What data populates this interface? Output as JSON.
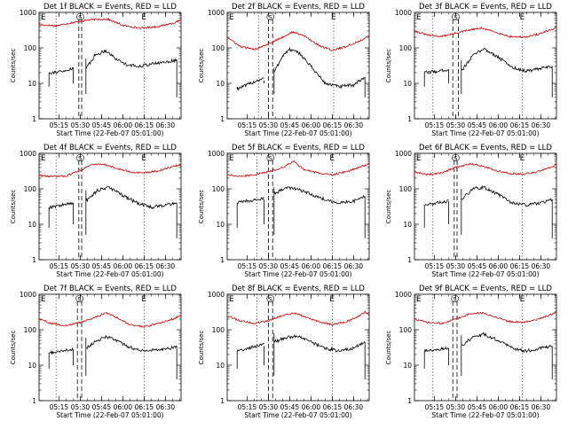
{
  "figure": {
    "ylabel": "Counts/sec",
    "xlabel": "Start Time (22-Feb-07 05:01:00)",
    "xticks": [
      "05:15",
      "05:30",
      "05:45",
      "06:00",
      "06:15",
      "06:30"
    ],
    "yticks": [
      "1",
      "10",
      "100",
      "1000"
    ],
    "markers": {
      "left": "E",
      "right": "E",
      "saa": "S"
    },
    "colors": {
      "events": "#000000",
      "lld": "#cc0000"
    }
  },
  "chart_data": [
    {
      "type": "line",
      "title": "Det 1f BLACK = Events, RED = LLD",
      "xlim": [
        "05:01",
        "06:41"
      ],
      "ylim": [
        1,
        1000
      ],
      "yscale": "log",
      "xlabel": "Start Time (22-Feb-07 05:01:00)",
      "ylabel": "Counts/sec",
      "dotted_x": [
        "05:13",
        "06:15"
      ],
      "dashed_x": [
        "05:29",
        "05:31"
      ],
      "events": {
        "start": "05:08",
        "end": "06:38",
        "gap": [
          "05:25",
          "05:34"
        ],
        "x": [
          "05:08",
          "05:20",
          "05:25",
          "05:34",
          "05:40",
          "05:48",
          "05:55",
          "06:02",
          "06:10",
          "06:20",
          "06:30",
          "06:38"
        ],
        "y": [
          20,
          22,
          28,
          25,
          60,
          85,
          50,
          35,
          30,
          35,
          40,
          45
        ]
      },
      "lld": {
        "x": [
          "05:01",
          "05:13",
          "05:25",
          "05:37",
          "05:49",
          "06:01",
          "06:13",
          "06:25",
          "06:37",
          "06:41"
        ],
        "y": [
          450,
          420,
          520,
          620,
          650,
          420,
          360,
          400,
          520,
          600
        ]
      }
    },
    {
      "type": "line",
      "title": "Det 2f BLACK = Events, RED = LLD",
      "xlim": [
        "05:01",
        "06:41"
      ],
      "ylim": [
        1,
        1000
      ],
      "yscale": "log",
      "xlabel": "Start Time (22-Feb-07 05:01:00)",
      "ylabel": "Counts/sec",
      "dotted_x": [
        "05:23",
        "06:16"
      ],
      "dashed_x": [
        "05:30",
        "05:33"
      ],
      "events": {
        "start": "05:08",
        "end": "06:38",
        "gap": [
          "05:27",
          "05:34"
        ],
        "x": [
          "05:08",
          "05:15",
          "05:22",
          "05:27",
          "05:34",
          "05:40",
          "05:45",
          "05:52",
          "06:00",
          "06:10",
          "06:20",
          "06:30",
          "06:38"
        ],
        "y": [
          7,
          9,
          12,
          14,
          20,
          60,
          90,
          70,
          30,
          10,
          8,
          9,
          15
        ]
      },
      "lld": {
        "x": [
          "05:01",
          "05:10",
          "05:20",
          "05:30",
          "05:40",
          "05:47",
          "05:55",
          "06:05",
          "06:15",
          "06:25",
          "06:35",
          "06:41"
        ],
        "y": [
          200,
          110,
          90,
          130,
          200,
          280,
          220,
          120,
          85,
          110,
          160,
          220
        ]
      }
    },
    {
      "type": "line",
      "title": "Det 3f BLACK = Events, RED = LLD",
      "xlim": [
        "05:01",
        "06:41"
      ],
      "ylim": [
        1,
        1000
      ],
      "yscale": "log",
      "xlabel": "Start Time (22-Feb-07 05:01:00)",
      "ylabel": "Counts/sec",
      "dotted_x": [
        "05:14",
        "06:17"
      ],
      "dashed_x": [
        "05:28",
        "05:32"
      ],
      "events": {
        "start": "05:08",
        "end": "06:38",
        "gap": [
          "05:25",
          "05:34"
        ],
        "x": [
          "05:08",
          "05:18",
          "05:25",
          "05:34",
          "05:42",
          "05:50",
          "06:00",
          "06:10",
          "06:20",
          "06:30",
          "06:38"
        ],
        "y": [
          20,
          22,
          25,
          22,
          60,
          95,
          55,
          28,
          22,
          26,
          30
        ]
      },
      "lld": {
        "x": [
          "05:01",
          "05:10",
          "05:20",
          "05:30",
          "05:40",
          "05:48",
          "05:58",
          "06:08",
          "06:18",
          "06:28",
          "06:38",
          "06:41"
        ],
        "y": [
          300,
          230,
          210,
          260,
          320,
          360,
          280,
          210,
          200,
          240,
          330,
          380
        ]
      }
    },
    {
      "type": "line",
      "title": "Det 4f BLACK = Events, RED = LLD",
      "xlim": [
        "05:01",
        "06:41"
      ],
      "ylim": [
        1,
        1000
      ],
      "yscale": "log",
      "xlabel": "Start Time (22-Feb-07 05:01:00)",
      "ylabel": "Counts/sec",
      "dotted_x": [
        "05:13",
        "06:15"
      ],
      "dashed_x": [
        "05:29",
        "05:31"
      ],
      "events": {
        "start": "05:08",
        "end": "06:38",
        "gap": [
          "05:25",
          "05:34"
        ],
        "x": [
          "05:08",
          "05:18",
          "05:25",
          "05:34",
          "05:42",
          "05:50",
          "06:00",
          "06:10",
          "06:20",
          "06:30",
          "06:38"
        ],
        "y": [
          30,
          35,
          40,
          45,
          90,
          110,
          65,
          40,
          30,
          35,
          40
        ]
      },
      "lld": {
        "x": [
          "05:01",
          "05:10",
          "05:20",
          "05:30",
          "05:38",
          "05:46",
          "05:55",
          "06:05",
          "06:15",
          "06:25",
          "06:35",
          "06:41"
        ],
        "y": [
          240,
          220,
          230,
          330,
          480,
          500,
          380,
          300,
          280,
          320,
          420,
          470
        ]
      }
    },
    {
      "type": "line",
      "title": "Det 5f BLACK = Events, RED = LLD",
      "xlim": [
        "05:01",
        "06:41"
      ],
      "ylim": [
        1,
        1000
      ],
      "yscale": "log",
      "xlabel": "Start Time (22-Feb-07 05:01:00)",
      "ylabel": "Counts/sec",
      "dotted_x": [
        "05:22",
        "06:15"
      ],
      "dashed_x": [
        "05:30",
        "05:33"
      ],
      "events": {
        "start": "05:08",
        "end": "06:38",
        "gap": [
          "05:27",
          "05:34"
        ],
        "x": [
          "05:08",
          "05:15",
          "05:22",
          "05:27",
          "05:34",
          "05:42",
          "05:50",
          "06:00",
          "06:10",
          "06:20",
          "06:30",
          "06:38"
        ],
        "y": [
          40,
          45,
          50,
          55,
          70,
          110,
          100,
          70,
          50,
          40,
          45,
          60
        ]
      },
      "lld": {
        "x": [
          "05:01",
          "05:10",
          "05:20",
          "05:30",
          "05:40",
          "05:48",
          "05:55",
          "06:05",
          "06:15",
          "06:25",
          "06:35",
          "06:41"
        ],
        "y": [
          250,
          220,
          250,
          300,
          400,
          600,
          350,
          280,
          250,
          300,
          420,
          500
        ]
      }
    },
    {
      "type": "line",
      "title": "Det 6f BLACK = Events, RED = LLD",
      "xlim": [
        "05:01",
        "06:41"
      ],
      "ylim": [
        1,
        1000
      ],
      "yscale": "log",
      "xlabel": "Start Time (22-Feb-07 05:01:00)",
      "ylabel": "Counts/sec",
      "dotted_x": [
        "05:14",
        "06:17"
      ],
      "dashed_x": [
        "05:29",
        "05:31"
      ],
      "events": {
        "start": "05:08",
        "end": "06:38",
        "gap": [
          "05:25",
          "05:34"
        ],
        "x": [
          "05:08",
          "05:18",
          "05:25",
          "05:34",
          "05:42",
          "05:50",
          "06:00",
          "06:10",
          "06:20",
          "06:30",
          "06:38"
        ],
        "y": [
          35,
          40,
          45,
          50,
          100,
          110,
          70,
          40,
          35,
          40,
          50
        ]
      },
      "lld": {
        "x": [
          "05:01",
          "05:10",
          "05:20",
          "05:30",
          "05:40",
          "05:48",
          "05:58",
          "06:08",
          "06:18",
          "06:28",
          "06:38",
          "06:41"
        ],
        "y": [
          300,
          250,
          280,
          400,
          500,
          450,
          330,
          270,
          260,
          310,
          420,
          480
        ]
      }
    },
    {
      "type": "line",
      "title": "Det 7f BLACK = Events, RED = LLD",
      "xlim": [
        "05:01",
        "06:41"
      ],
      "ylim": [
        1,
        1000
      ],
      "yscale": "log",
      "xlabel": "Start Time (22-Feb-07 05:01:00)",
      "ylabel": "Counts/sec",
      "dotted_x": [
        "05:13",
        "06:15"
      ],
      "dashed_x": [
        "05:28",
        "05:31"
      ],
      "events": {
        "start": "05:08",
        "end": "06:38",
        "gap": [
          "05:25",
          "05:34"
        ],
        "x": [
          "05:08",
          "05:18",
          "05:25",
          "05:34",
          "05:40",
          "05:48",
          "05:55",
          "06:05",
          "06:15",
          "06:25",
          "06:33",
          "06:38"
        ],
        "y": [
          22,
          25,
          28,
          30,
          45,
          65,
          50,
          32,
          25,
          28,
          30,
          35
        ]
      },
      "lld": {
        "x": [
          "05:01",
          "05:10",
          "05:20",
          "05:30",
          "05:40",
          "05:48",
          "05:56",
          "06:05",
          "06:15",
          "06:25",
          "06:35",
          "06:41"
        ],
        "y": [
          200,
          150,
          130,
          160,
          220,
          300,
          220,
          140,
          120,
          150,
          200,
          250
        ]
      }
    },
    {
      "type": "line",
      "title": "Det 8f BLACK = Events, RED = LLD",
      "xlim": [
        "05:01",
        "06:41"
      ],
      "ylim": [
        1,
        1000
      ],
      "yscale": "log",
      "xlabel": "Start Time (22-Feb-07 05:01:00)",
      "ylabel": "Counts/sec",
      "dotted_x": [
        "05:22",
        "06:15"
      ],
      "dashed_x": [
        "05:30",
        "05:33"
      ],
      "events": {
        "start": "05:08",
        "end": "06:38",
        "gap": [
          "05:27",
          "05:34"
        ],
        "x": [
          "05:08",
          "05:15",
          "05:22",
          "05:27",
          "05:34",
          "05:42",
          "05:50",
          "06:00",
          "06:10",
          "06:20",
          "06:30",
          "06:38"
        ],
        "y": [
          25,
          30,
          35,
          40,
          45,
          60,
          65,
          45,
          30,
          25,
          30,
          45
        ]
      },
      "lld": {
        "x": [
          "05:01",
          "05:10",
          "05:20",
          "05:30",
          "05:40",
          "05:48",
          "05:56",
          "06:05",
          "06:15",
          "06:25",
          "06:33",
          "06:38",
          "06:41"
        ],
        "y": [
          250,
          180,
          150,
          180,
          250,
          300,
          230,
          170,
          140,
          170,
          230,
          320,
          260
        ]
      }
    },
    {
      "type": "line",
      "title": "Det 9f BLACK = Events, RED = LLD",
      "xlim": [
        "05:01",
        "06:41"
      ],
      "ylim": [
        1,
        1000
      ],
      "yscale": "log",
      "xlabel": "Start Time (22-Feb-07 05:01:00)",
      "ylabel": "Counts/sec",
      "dotted_x": [
        "05:14",
        "06:17"
      ],
      "dashed_x": [
        "05:28",
        "05:31"
      ],
      "events": {
        "start": "05:08",
        "end": "06:38",
        "gap": [
          "05:25",
          "05:34"
        ],
        "x": [
          "05:08",
          "05:18",
          "05:25",
          "05:34",
          "05:42",
          "05:50",
          "06:00",
          "06:10",
          "06:20",
          "06:30",
          "06:38"
        ],
        "y": [
          25,
          28,
          30,
          35,
          60,
          75,
          50,
          30,
          25,
          30,
          35
        ]
      },
      "lld": {
        "x": [
          "05:01",
          "05:10",
          "05:20",
          "05:30",
          "05:40",
          "05:48",
          "05:58",
          "06:08",
          "06:18",
          "06:28",
          "06:38",
          "06:41"
        ],
        "y": [
          200,
          160,
          150,
          200,
          280,
          300,
          230,
          170,
          160,
          200,
          270,
          320
        ]
      }
    }
  ]
}
